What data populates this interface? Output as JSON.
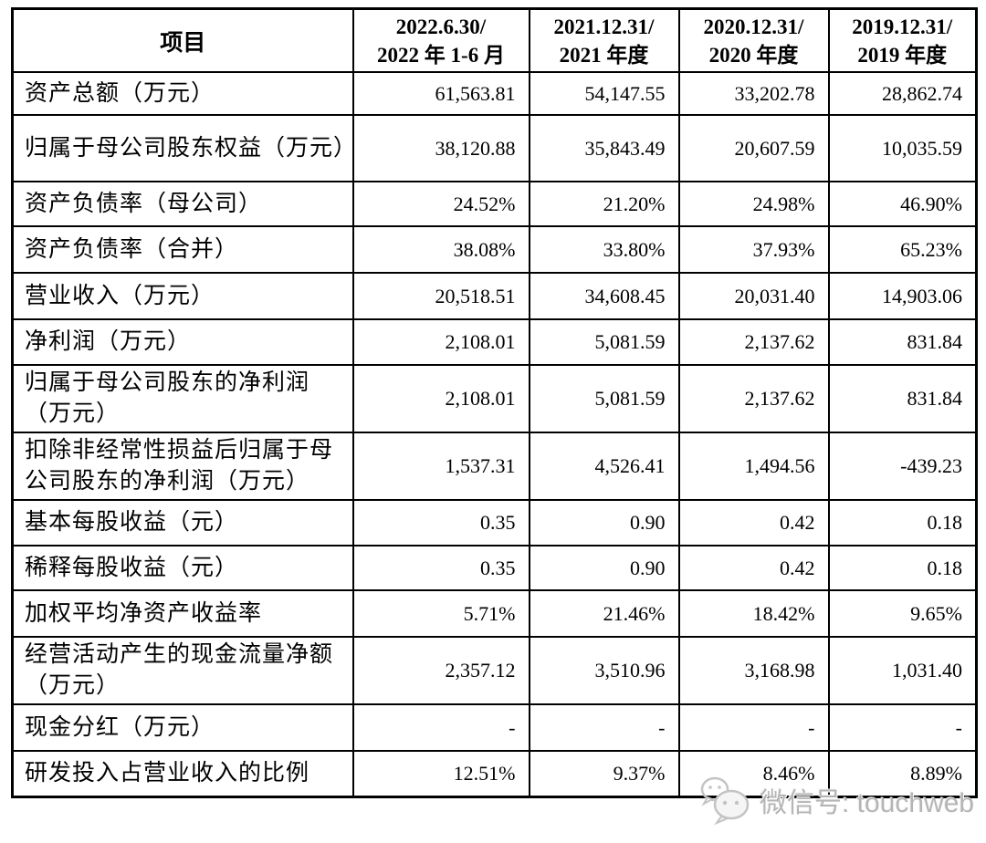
{
  "table": {
    "header": {
      "item_label": "项目",
      "periods": [
        {
          "line1": "2022.6.30/",
          "line2": "2022 年 1-6 月"
        },
        {
          "line1": "2021.12.31/",
          "line2": "2021 年度"
        },
        {
          "line1": "2020.12.31/",
          "line2": "2020 年度"
        },
        {
          "line1": "2019.12.31/",
          "line2": "2019 年度"
        }
      ]
    },
    "rows": [
      {
        "label": "资产总额（万元）",
        "values": [
          "61,563.81",
          "54,147.55",
          "33,202.78",
          "28,862.74"
        ]
      },
      {
        "label": "归属于母公司股东权益（万元）",
        "values": [
          "38,120.88",
          "35,843.49",
          "20,607.59",
          "10,035.59"
        ]
      },
      {
        "label": "资产负债率（母公司）",
        "values": [
          "24.52%",
          "21.20%",
          "24.98%",
          "46.90%"
        ]
      },
      {
        "label": "资产负债率（合并）",
        "values": [
          "38.08%",
          "33.80%",
          "37.93%",
          "65.23%"
        ]
      },
      {
        "label": "营业收入（万元）",
        "values": [
          "20,518.51",
          "34,608.45",
          "20,031.40",
          "14,903.06"
        ]
      },
      {
        "label": "净利润（万元）",
        "values": [
          "2,108.01",
          "5,081.59",
          "2,137.62",
          "831.84"
        ]
      },
      {
        "label": "归属于母公司股东的净利润（万元）",
        "values": [
          "2,108.01",
          "5,081.59",
          "2,137.62",
          "831.84"
        ]
      },
      {
        "label": "扣除非经常性损益后归属于母公司股东的净利润（万元）",
        "values": [
          "1,537.31",
          "4,526.41",
          "1,494.56",
          "-439.23"
        ]
      },
      {
        "label": "基本每股收益（元）",
        "values": [
          "0.35",
          "0.90",
          "0.42",
          "0.18"
        ]
      },
      {
        "label": "稀释每股收益（元）",
        "values": [
          "0.35",
          "0.90",
          "0.42",
          "0.18"
        ]
      },
      {
        "label": "加权平均净资产收益率",
        "values": [
          "5.71%",
          "21.46%",
          "18.42%",
          "9.65%"
        ]
      },
      {
        "label": "经营活动产生的现金流量净额（万元）",
        "values": [
          "2,357.12",
          "3,510.96",
          "3,168.98",
          "1,031.40"
        ]
      },
      {
        "label": "现金分红（万元）",
        "values": [
          "-",
          "-",
          "-",
          "-"
        ]
      },
      {
        "label": "研发投入占营业收入的比例",
        "values": [
          "12.51%",
          "9.37%",
          "8.46%",
          "8.89%"
        ]
      }
    ]
  },
  "chart_data": {
    "type": "table",
    "title": "",
    "columns": [
      "项目",
      "2022.6.30/2022 年 1-6 月",
      "2021.12.31/2021 年度",
      "2020.12.31/2020 年度",
      "2019.12.31/2019 年度"
    ],
    "row_labels": [
      "资产总额（万元）",
      "归属于母公司股东权益（万元）",
      "资产负债率（母公司）",
      "资产负债率（合并）",
      "营业收入（万元）",
      "净利润（万元）",
      "归属于母公司股东的净利润（万元）",
      "扣除非经常性损益后归属于母公司股东的净利润（万元）",
      "基本每股收益（元）",
      "稀释每股收益（元）",
      "加权平均净资产收益率",
      "经营活动产生的现金流量净额（万元）",
      "现金分红（万元）",
      "研发投入占营业收入的比例"
    ],
    "values": [
      [
        61563.81,
        54147.55,
        33202.78,
        28862.74
      ],
      [
        38120.88,
        35843.49,
        20607.59,
        10035.59
      ],
      [
        "24.52%",
        "21.20%",
        "24.98%",
        "46.90%"
      ],
      [
        "38.08%",
        "33.80%",
        "37.93%",
        "65.23%"
      ],
      [
        20518.51,
        34608.45,
        20031.4,
        14903.06
      ],
      [
        2108.01,
        5081.59,
        2137.62,
        831.84
      ],
      [
        2108.01,
        5081.59,
        2137.62,
        831.84
      ],
      [
        1537.31,
        4526.41,
        1494.56,
        -439.23
      ],
      [
        0.35,
        0.9,
        0.42,
        0.18
      ],
      [
        0.35,
        0.9,
        0.42,
        0.18
      ],
      [
        "5.71%",
        "21.46%",
        "18.42%",
        "9.65%"
      ],
      [
        2357.12,
        3510.96,
        3168.98,
        1031.4
      ],
      [
        "-",
        "-",
        "-",
        "-"
      ],
      [
        "12.51%",
        "9.37%",
        "8.46%",
        "8.89%"
      ]
    ]
  },
  "watermark": {
    "text": "微信号: touchweb",
    "icon": "wechat-icon",
    "color": "#b5b5b5"
  },
  "colors": {
    "border": "#000000",
    "text": "#000000",
    "background": "#ffffff"
  }
}
